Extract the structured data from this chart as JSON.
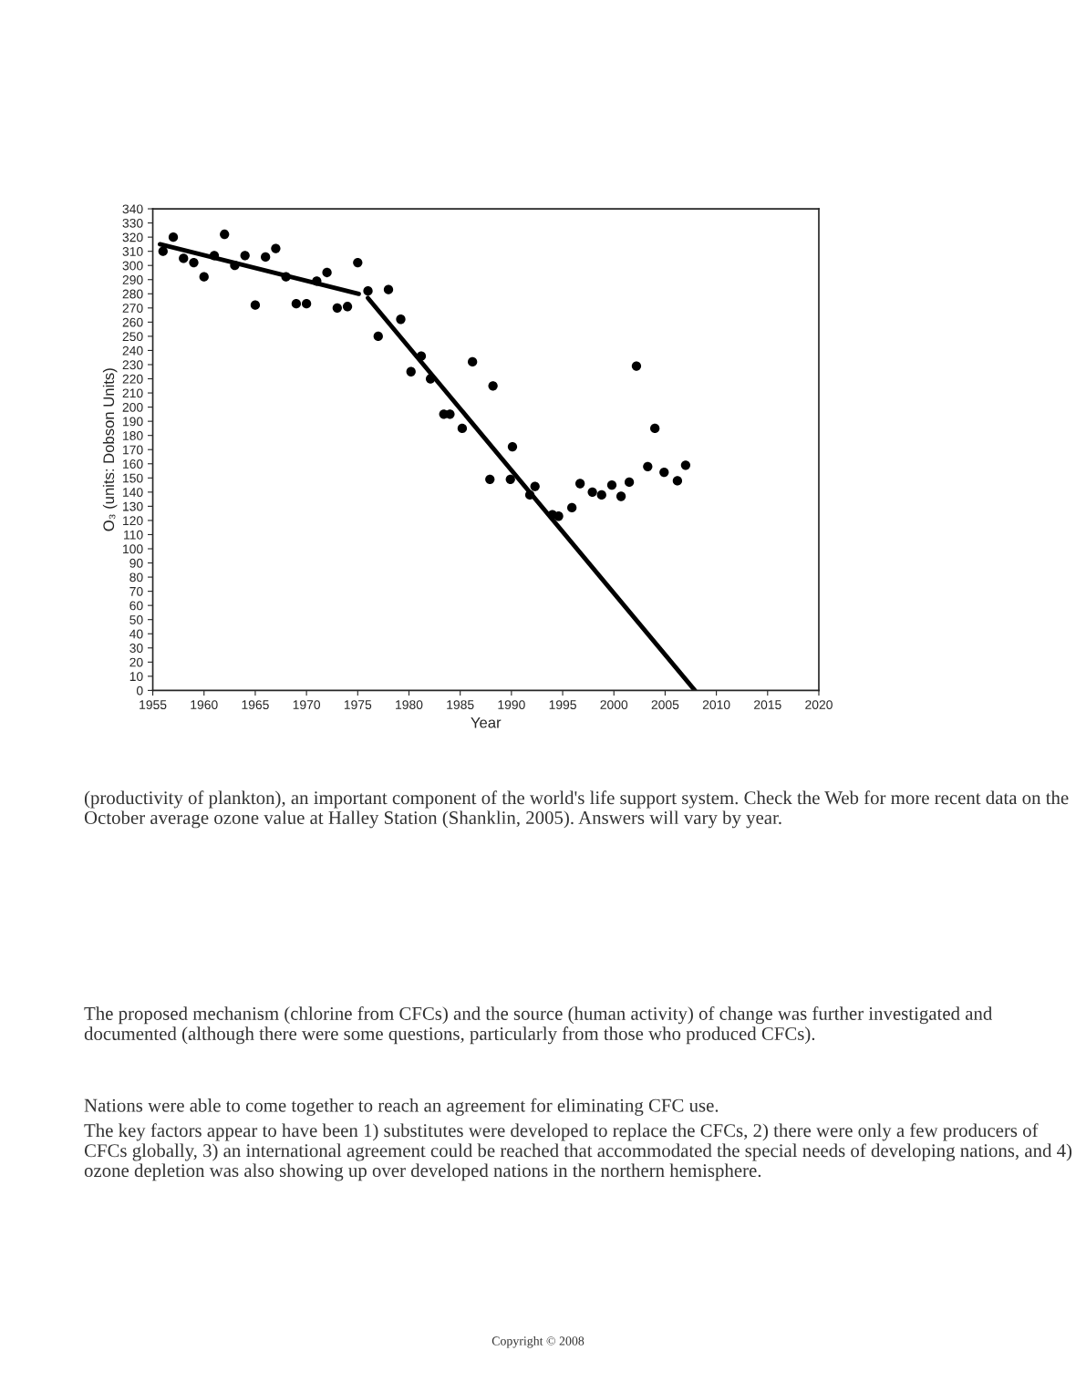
{
  "chart_data": {
    "type": "scatter",
    "xlabel": "Year",
    "ylabel": "O₃ (units: Dobson Units)",
    "xlim": [
      1955,
      2020
    ],
    "xticks": [
      1955,
      1960,
      1965,
      1970,
      1975,
      1980,
      1985,
      1990,
      1995,
      2000,
      2005,
      2010,
      2015,
      2020
    ],
    "ylim": [
      0,
      340
    ],
    "yticks": [
      0,
      10,
      20,
      30,
      40,
      50,
      60,
      70,
      80,
      90,
      100,
      110,
      120,
      130,
      140,
      150,
      160,
      170,
      180,
      190,
      200,
      210,
      220,
      230,
      240,
      250,
      260,
      270,
      280,
      290,
      300,
      310,
      320,
      330,
      340
    ],
    "marker": "circle",
    "series": [
      {
        "color": "#000000",
        "x": [
          1956,
          1957,
          1958,
          1959,
          1960,
          1961,
          1962,
          1963,
          1964,
          1965,
          1966,
          1967,
          1968,
          1969,
          1970,
          1971,
          1972,
          1973,
          1974,
          1975,
          1976,
          1977,
          1978,
          1979.2,
          1980.2,
          1981.2,
          1982.1,
          1983.4,
          1984.0,
          1985.2,
          1986.2,
          1987.9,
          1988.2,
          1989.9,
          1990.1,
          1991.8,
          1992.3,
          1994.0,
          1994.6,
          1995.9,
          1996.7,
          1997.9,
          1998.8,
          1999.8,
          2000.7,
          2001.5,
          2002.2,
          2003.3,
          2004.0,
          2004.9,
          2006.2,
          2007.0
        ],
        "values": [
          310,
          320,
          305,
          302,
          292,
          307,
          322,
          300,
          307,
          272,
          306,
          312,
          292,
          273,
          273,
          289,
          295,
          270,
          271,
          302,
          282,
          250,
          283,
          262,
          225,
          236,
          220,
          195,
          195,
          185,
          232,
          149,
          215,
          149,
          172,
          138,
          144,
          124,
          123,
          129,
          146,
          140,
          138,
          145,
          137,
          147,
          229,
          158,
          185,
          154,
          148,
          159
        ]
      },
      {
        "type": "line",
        "color": "#000000",
        "marker": "none",
        "line_style": "solid",
        "x": [
          1955.7,
          1975.1
        ],
        "values": [
          315,
          280
        ]
      },
      {
        "type": "line",
        "color": "#000000",
        "marker": "none",
        "line_style": "solid",
        "x": [
          1976.0,
          2007.9
        ],
        "values": [
          277,
          0
        ]
      }
    ],
    "annotations": [
      "(productivity of plankton), an important component of the world's life support system. Check the Web for more recent data on the October average ozone value at Halley Station (Shanklin, 2005). Answers will vary by year.",
      "The proposed mechanism (chlorine from CFCs) and the source (human activity) of change was further investigated and documented (although there were some questions, particularly from those who produced CFCs).",
      "Nations were able to come together to reach an agreement for eliminating CFC use.",
      "The key factors appear to have been 1) substitutes were developed to replace the CFCs, 2) there were only a few producers of CFCs globally, 3) an international agreement could be reached that accommodated the special needs of developing nations, and 4) ozone depletion was also showing up over developed nations in the northern hemisphere.",
      "Copyright © 2008"
    ]
  }
}
